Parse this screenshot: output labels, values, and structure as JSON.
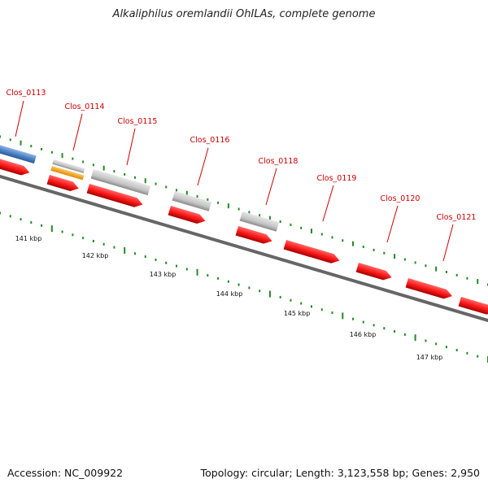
{
  "title": "Alkaliphilus oremlandii OhILAs, complete genome",
  "footer": {
    "accession": "Accession: NC_009922",
    "summary": "Topology: circular; Length: 3,123,558 bp; Genes: 2,950"
  },
  "colors": {
    "gene_label": "#cc0000",
    "cds_forward": "#ff1a1a",
    "gene_blue": "#4a7fc1",
    "gene_grey": "#c0c0c0",
    "gene_orange": "#f39c12",
    "backbone": "#777777",
    "ticks": "#228b22"
  },
  "ruler": {
    "unit": "kbp",
    "labels": [
      "141 kbp",
      "142 kbp",
      "143 kbp",
      "144 kbp",
      "145 kbp",
      "146 kbp",
      "147 kbp"
    ]
  },
  "genes": [
    {
      "label": "Clos_0113",
      "features": [
        "blue",
        "cds"
      ]
    },
    {
      "label": "Clos_0114",
      "features": [
        "grey",
        "orange",
        "cds"
      ]
    },
    {
      "label": "Clos_0115",
      "features": [
        "grey",
        "cds"
      ]
    },
    {
      "label": "Clos_0116",
      "features": [
        "grey",
        "cds"
      ]
    },
    {
      "label": "Clos_0118",
      "features": [
        "grey",
        "cds"
      ]
    },
    {
      "label": "Clos_0119",
      "features": [
        "cds"
      ]
    },
    {
      "label": "Clos_0120",
      "features": [
        "cds"
      ]
    },
    {
      "label": "Clos_0121",
      "features": [
        "cds"
      ]
    }
  ]
}
